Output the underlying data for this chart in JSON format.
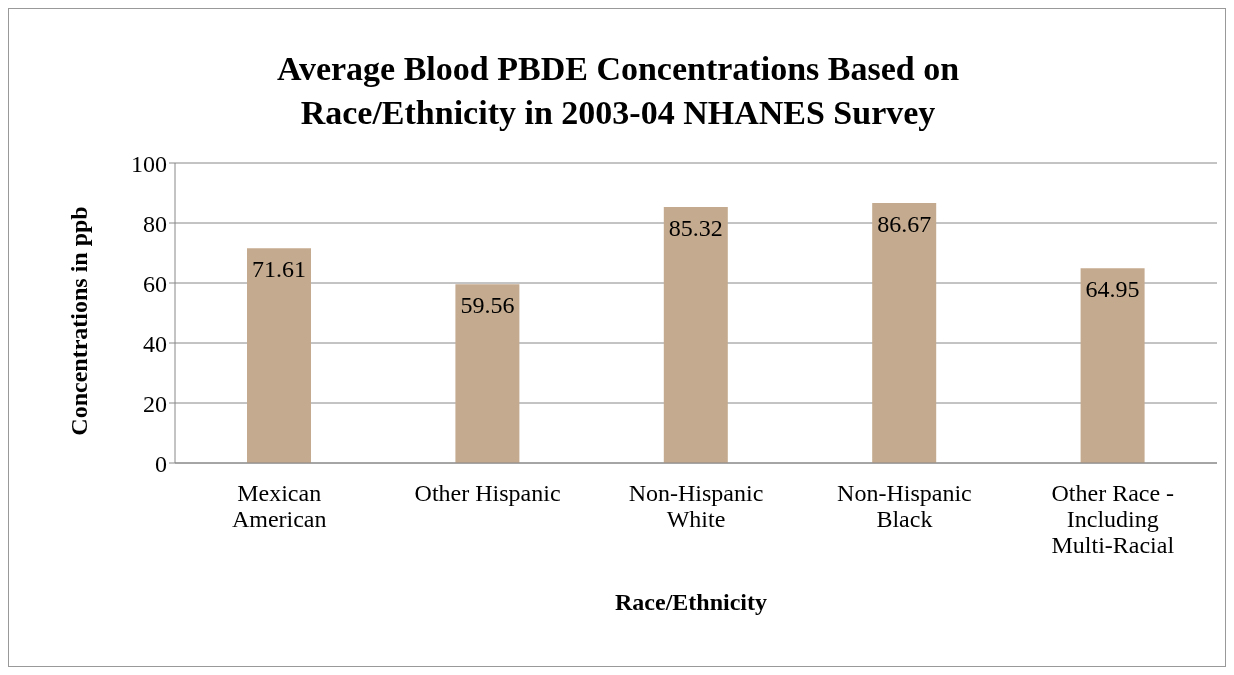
{
  "chart_data": {
    "type": "bar",
    "title": "Average Blood PBDE Concentrations Based on Race/Ethnicity in 2003-04 NHANES Survey",
    "xlabel": "Race/Ethnicity",
    "ylabel": "Concentrations in ppb",
    "categories": [
      "Mexican American",
      "Other Hispanic",
      "Non-Hispanic White",
      "Non-Hispanic Black",
      "Other Race - Including Multi-Racial"
    ],
    "values": [
      71.61,
      59.56,
      85.32,
      86.67,
      64.95
    ],
    "color": "#c4aa8e",
    "ylim": [
      0,
      100
    ],
    "yticks": [
      0,
      20,
      40,
      60,
      80,
      100
    ],
    "grid": "y",
    "data_labels": true
  }
}
